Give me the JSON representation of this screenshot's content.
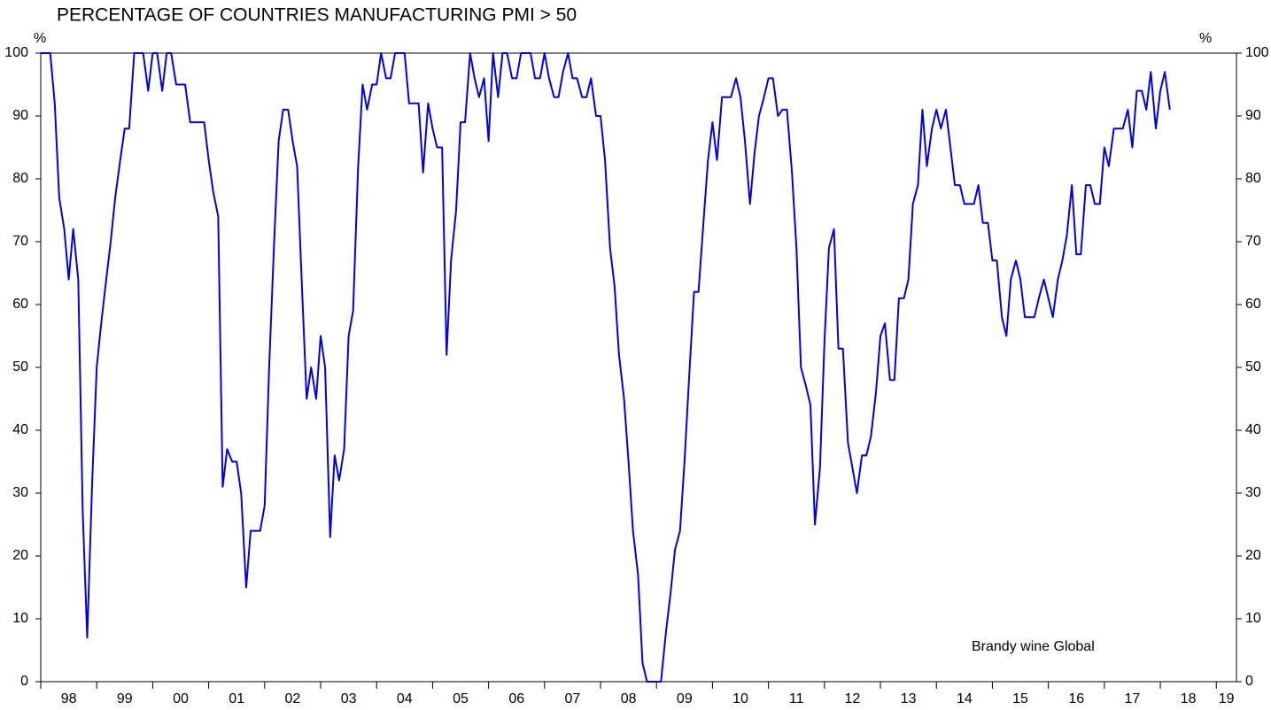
{
  "chart_data": {
    "type": "line",
    "title": "PERCENTAGE OF COUNTRIES MANUFACTURING PMI > 50",
    "y_label": "%",
    "annotation": "Brandy wine Global",
    "xlim": [
      1998,
      2019.36
    ],
    "xticks": [
      {
        "value": 1998,
        "label": "98"
      },
      {
        "value": 1999,
        "label": "99"
      },
      {
        "value": 2000,
        "label": "00"
      },
      {
        "value": 2001,
        "label": "01"
      },
      {
        "value": 2002,
        "label": "02"
      },
      {
        "value": 2003,
        "label": "03"
      },
      {
        "value": 2004,
        "label": "04"
      },
      {
        "value": 2005,
        "label": "05"
      },
      {
        "value": 2006,
        "label": "06"
      },
      {
        "value": 2007,
        "label": "07"
      },
      {
        "value": 2008,
        "label": "08"
      },
      {
        "value": 2009,
        "label": "09"
      },
      {
        "value": 2010,
        "label": "10"
      },
      {
        "value": 2011,
        "label": "11"
      },
      {
        "value": 2012,
        "label": "12"
      },
      {
        "value": 2013,
        "label": "13"
      },
      {
        "value": 2014,
        "label": "14"
      },
      {
        "value": 2015,
        "label": "15"
      },
      {
        "value": 2016,
        "label": "16"
      },
      {
        "value": 2017,
        "label": "17"
      },
      {
        "value": 2018,
        "label": "18"
      },
      {
        "value": 2019,
        "label": "19"
      }
    ],
    "ylim": [
      0,
      100
    ],
    "yticks": [
      0,
      10,
      20,
      30,
      40,
      50,
      60,
      70,
      80,
      90,
      100
    ],
    "grid": false,
    "series": [
      {
        "color": "#0000ee",
        "x": [
          1998,
          1998.17,
          1998.25,
          1998.33,
          1998.42,
          1998.5,
          1998.58,
          1998.67,
          1998.75,
          1998.83,
          1998.92,
          1999,
          1999.08,
          1999.17,
          1999.25,
          1999.33,
          1999.42,
          1999.5,
          1999.58,
          1999.67,
          1999.83,
          1999.92,
          2000,
          2000.08,
          2000.17,
          2000.25,
          2000.33,
          2000.42,
          2000.58,
          2000.67,
          2000.92,
          2001,
          2001.08,
          2001.17,
          2001.25,
          2001.33,
          2001.42,
          2001.5,
          2001.58,
          2001.67,
          2001.75,
          2001.92,
          2002,
          2002.08,
          2002.17,
          2002.25,
          2002.33,
          2002.42,
          2002.5,
          2002.58,
          2002.67,
          2002.75,
          2002.83,
          2002.92,
          2003,
          2003.08,
          2003.17,
          2003.25,
          2003.33,
          2003.42,
          2003.5,
          2003.58,
          2003.67,
          2003.75,
          2003.83,
          2003.92,
          2004,
          2004.08,
          2004.17,
          2004.25,
          2004.33,
          2004.5,
          2004.58,
          2004.75,
          2004.83,
          2004.92,
          2005,
          2005.08,
          2005.17,
          2005.25,
          2005.33,
          2005.42,
          2005.5,
          2005.58,
          2005.67,
          2005.75,
          2005.83,
          2005.92,
          2006,
          2006.08,
          2006.17,
          2006.25,
          2006.33,
          2006.42,
          2006.5,
          2006.58,
          2006.75,
          2006.83,
          2006.92,
          2007,
          2007.08,
          2007.17,
          2007.25,
          2007.33,
          2007.42,
          2007.5,
          2007.58,
          2007.67,
          2007.75,
          2007.83,
          2007.92,
          2008,
          2008.08,
          2008.17,
          2008.25,
          2008.33,
          2008.42,
          2008.5,
          2008.58,
          2008.67,
          2008.75,
          2008.83,
          2009.08,
          2009.17,
          2009.25,
          2009.33,
          2009.42,
          2009.5,
          2009.58,
          2009.67,
          2009.75,
          2009.83,
          2009.92,
          2010,
          2010.08,
          2010.17,
          2010.33,
          2010.42,
          2010.5,
          2010.58,
          2010.67,
          2010.75,
          2010.83,
          2010.92,
          2011,
          2011.08,
          2011.17,
          2011.25,
          2011.33,
          2011.42,
          2011.5,
          2011.58,
          2011.67,
          2011.75,
          2011.83,
          2011.92,
          2012,
          2012.08,
          2012.17,
          2012.25,
          2012.33,
          2012.42,
          2012.5,
          2012.58,
          2012.67,
          2012.75,
          2012.83,
          2012.92,
          2013,
          2013.08,
          2013.17,
          2013.25,
          2013.33,
          2013.42,
          2013.5,
          2013.58,
          2013.67,
          2013.75,
          2013.83,
          2013.92,
          2014,
          2014.08,
          2014.17,
          2014.25,
          2014.33,
          2014.42,
          2014.5,
          2014.67,
          2014.75,
          2014.83,
          2014.92,
          2015,
          2015.08,
          2015.17,
          2015.25,
          2015.33,
          2015.42,
          2015.5,
          2015.58,
          2015.75,
          2015.83,
          2015.92,
          2016,
          2016.08,
          2016.17,
          2016.25,
          2016.33,
          2016.42,
          2016.5,
          2016.58,
          2016.67,
          2016.75,
          2016.83,
          2016.92,
          2017,
          2017.08,
          2017.17,
          2017.33,
          2017.42,
          2017.5,
          2017.58,
          2017.67,
          2017.75,
          2017.83,
          2017.92,
          2018,
          2018.08,
          2018.17
        ],
        "values": [
          100,
          100,
          92,
          77,
          72,
          64,
          72,
          64,
          27,
          7,
          32,
          50,
          57,
          64,
          70,
          77,
          83,
          88,
          88,
          100,
          100,
          94,
          100,
          100,
          94,
          100,
          100,
          95,
          95,
          89,
          89,
          83,
          78,
          74,
          31,
          37,
          35,
          35,
          30,
          15,
          24,
          24,
          28,
          50,
          70,
          86,
          91,
          91,
          86,
          82,
          62,
          45,
          50,
          45,
          55,
          50,
          23,
          36,
          32,
          37,
          55,
          59,
          82,
          95,
          91,
          95,
          95,
          100,
          96,
          96,
          100,
          100,
          92,
          92,
          81,
          92,
          88,
          85,
          85,
          52,
          67,
          75,
          89,
          89,
          100,
          96,
          93,
          96,
          86,
          100,
          93,
          100,
          100,
          96,
          96,
          100,
          100,
          96,
          96,
          100,
          96,
          93,
          93,
          97,
          100,
          96,
          96,
          93,
          93,
          96,
          90,
          90,
          83,
          69,
          63,
          52,
          45,
          35,
          24,
          17,
          3,
          0,
          0,
          8,
          14,
          21,
          24,
          35,
          48,
          62,
          62,
          72,
          83,
          89,
          83,
          93,
          93,
          96,
          93,
          86,
          76,
          84,
          90,
          93,
          96,
          96,
          90,
          91,
          91,
          81,
          69,
          50,
          47,
          44,
          25,
          34,
          54,
          69,
          72,
          53,
          53,
          38,
          34,
          30,
          36,
          36,
          39,
          46,
          55,
          57,
          48,
          48,
          61,
          61,
          64,
          76,
          79,
          91,
          82,
          88,
          91,
          88,
          91,
          85,
          79,
          79,
          76,
          76,
          79,
          73,
          73,
          67,
          67,
          58,
          55,
          64,
          67,
          64,
          58,
          58,
          61,
          64,
          61,
          58,
          64,
          67,
          71,
          79,
          68,
          68,
          79,
          79,
          76,
          76,
          85,
          82,
          88,
          88,
          91,
          85,
          94,
          94,
          91,
          97,
          88,
          94,
          97,
          91
        ]
      }
    ]
  }
}
